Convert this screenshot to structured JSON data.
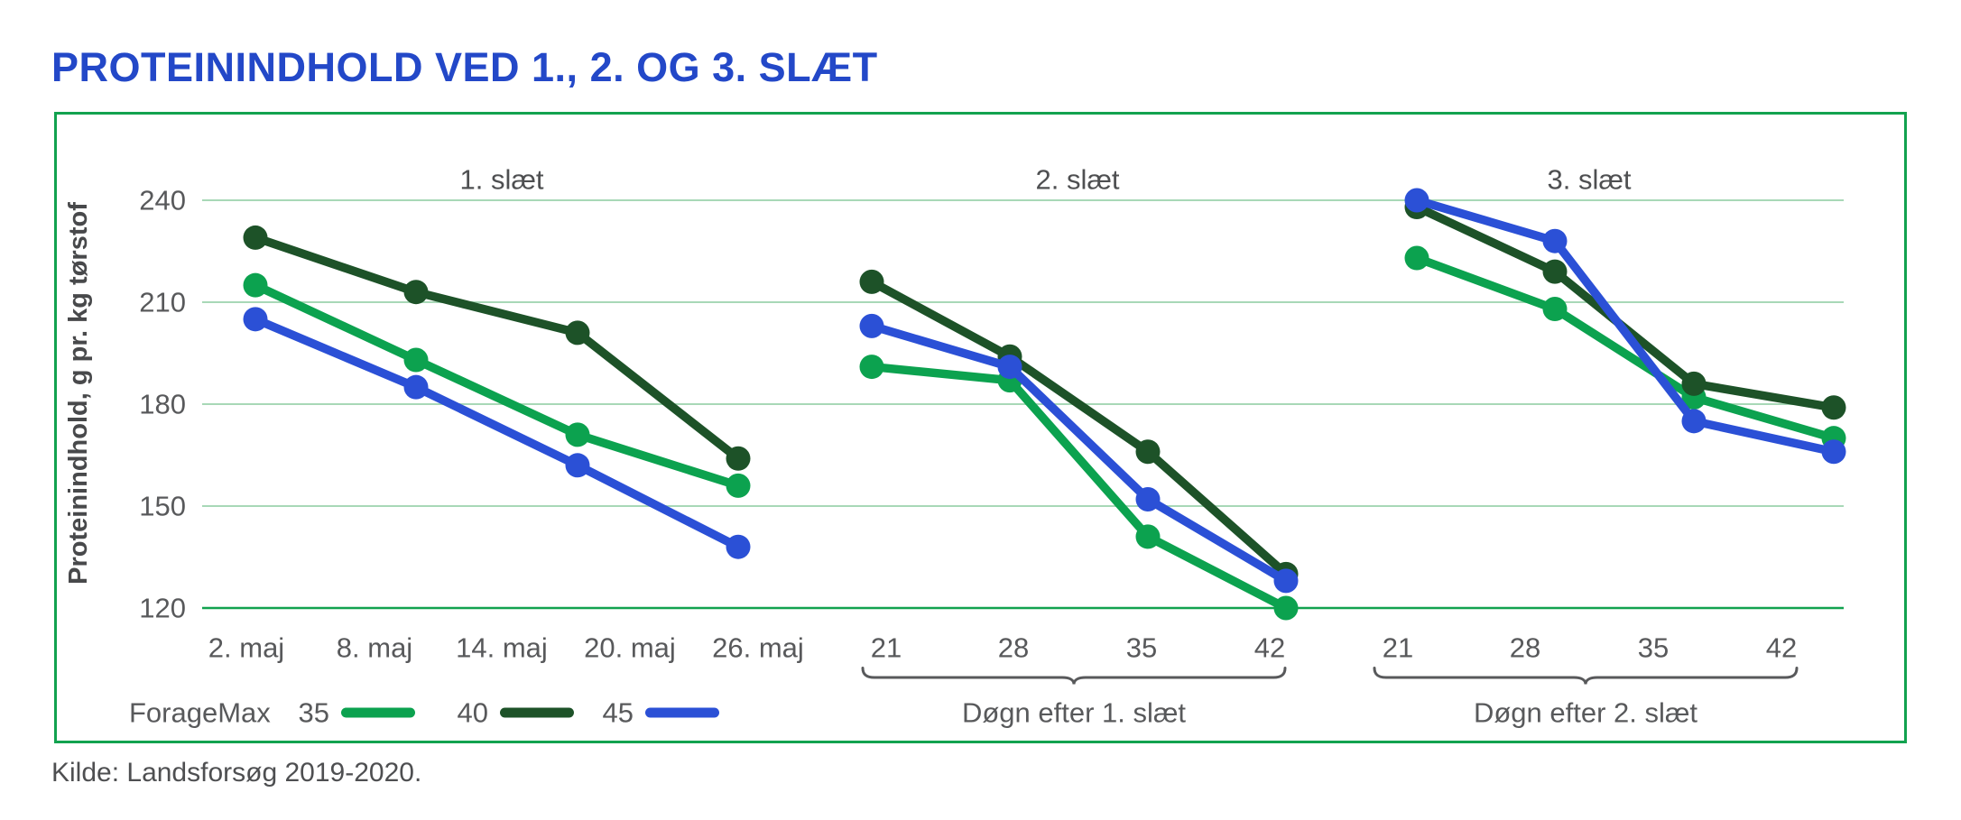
{
  "title": "PROTEININDHOLD VED 1., 2. OG 3. SLÆT",
  "source": "Kilde: Landsforsøg 2019-2020.",
  "colors": {
    "title": "#2348C8",
    "text": "#58595B",
    "panel_title": "#4E4F51",
    "grid": "#A8D8B7",
    "axis_baseline": "#12A24F",
    "box_border": "#12A24F",
    "bracket": "#58595B",
    "series": {
      "35": "#0CA24F",
      "40": "#1D5228",
      "45": "#2B50D6"
    }
  },
  "legend": {
    "prefix": "ForageMax",
    "entries": [
      {
        "label": "35",
        "series": "35"
      },
      {
        "label": "40",
        "series": "40"
      },
      {
        "label": "45",
        "series": "45"
      }
    ]
  },
  "y_axis": {
    "label": "Proteinindhold, g pr. kg tørstof",
    "ticks": [
      240,
      210,
      180,
      150,
      120
    ]
  },
  "chart_data": {
    "type": "line",
    "title": "PROTEININDHOLD VED 1., 2. OG 3. SLÆT",
    "ylabel": "Proteinindhold, g pr. kg tørstof",
    "ylim": [
      110,
      248
    ],
    "grid": "horizontal",
    "legend_position": "bottom-left",
    "series_names": [
      "ForageMax 35",
      "ForageMax 40",
      "ForageMax 45"
    ],
    "panels": [
      {
        "title": "1. slæt",
        "x_ticks": [
          "2. maj",
          "8. maj",
          "14. maj",
          "20. maj",
          "26. maj"
        ],
        "x_axis_label": "",
        "series": {
          "35": [
            215,
            193,
            171,
            156
          ],
          "40": [
            229,
            213,
            201,
            164
          ],
          "45": [
            205,
            185,
            162,
            138
          ]
        }
      },
      {
        "title": "2. slæt",
        "x_ticks": [
          "21",
          "28",
          "35",
          "42"
        ],
        "x_axis_label": "Døgn efter 1. slæt",
        "series": {
          "35": [
            191,
            187,
            141,
            120
          ],
          "40": [
            216,
            194,
            166,
            130
          ],
          "45": [
            203,
            191,
            152,
            128
          ]
        }
      },
      {
        "title": "3. slæt",
        "x_ticks": [
          "21",
          "28",
          "35",
          "42"
        ],
        "x_axis_label": "Døgn efter 2. slæt",
        "series": {
          "35": [
            223,
            208,
            182,
            170
          ],
          "40": [
            238,
            219,
            186,
            179
          ],
          "45": [
            240,
            228,
            175,
            166
          ]
        }
      }
    ]
  }
}
